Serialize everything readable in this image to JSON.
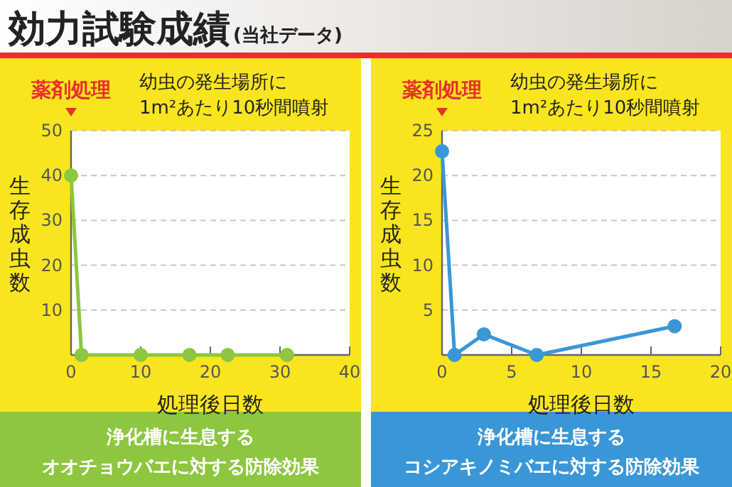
{
  "chart_data": [
    {
      "type": "line",
      "title": "効力試験成績",
      "subtitle": "(当社データ)",
      "xlabel": "処理後日数",
      "ylabel": "生存成虫数",
      "annotations": [
        "薬剤処理",
        "幼虫の発生場所に",
        "1m²あたり10秒間噴射",
        "浄化槽に生息する",
        "オオチョウバエに対する防除効果"
      ],
      "series": [
        {
          "color": "#8dc63f",
          "x": [
            0,
            1.5,
            10,
            17,
            22.5,
            31
          ],
          "values": [
            40,
            0,
            0,
            0,
            0,
            0
          ]
        }
      ],
      "xlim": [
        0,
        40
      ],
      "xticks": [
        0,
        10,
        20,
        30,
        40
      ],
      "ylim": [
        0,
        50
      ],
      "yticks": [
        10,
        20,
        30,
        40,
        50
      ],
      "grid": "y",
      "marker": "circle",
      "line_style": "solid"
    },
    {
      "type": "line",
      "xlabel": "処理後日数",
      "ylabel": "生存成虫数",
      "annotations": [
        "薬剤処理",
        "幼虫の発生場所に",
        "1m²あたり10秒間噴射",
        "浄化槽に生息する",
        "コシアキノミバエに対する防除効果"
      ],
      "series": [
        {
          "color": "#3a97d7",
          "x": [
            0,
            0.9,
            3,
            6.8,
            16.7
          ],
          "values": [
            22.7,
            0,
            2.3,
            0,
            3.2
          ]
        }
      ],
      "xlim": [
        0,
        20
      ],
      "xticks": [
        0,
        5,
        10,
        15,
        20
      ],
      "ylim": [
        0,
        25
      ],
      "yticks": [
        5,
        10,
        15,
        20,
        25
      ],
      "grid": "y",
      "marker": "circle",
      "line_style": "solid"
    }
  ]
}
